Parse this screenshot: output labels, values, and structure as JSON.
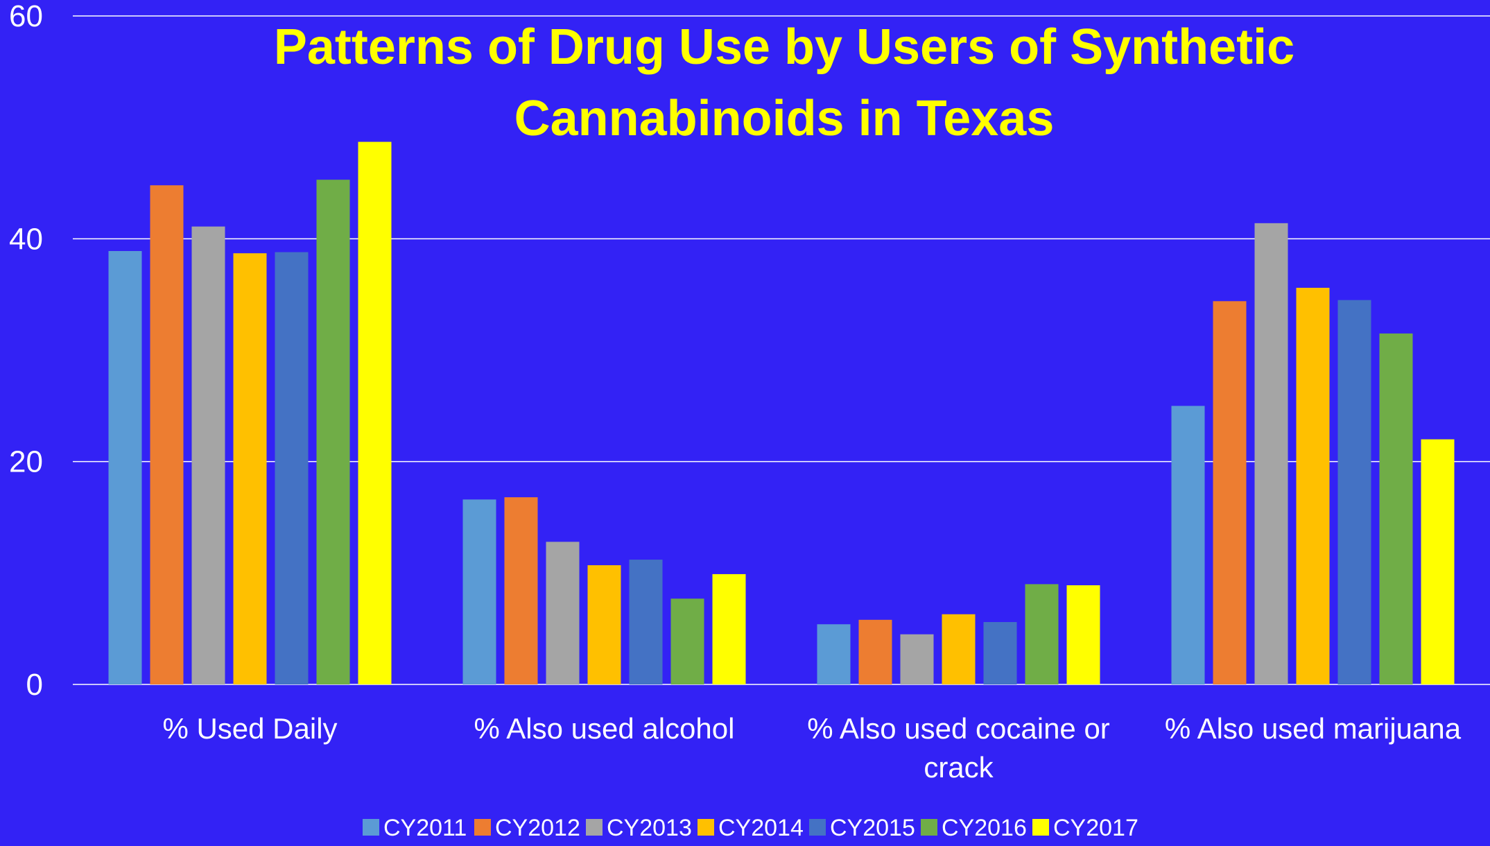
{
  "chart_data": {
    "type": "bar",
    "title": "Patterns of Drug Use by Users of Synthetic Cannabinoids in Texas",
    "title_lines": [
      "Patterns of Drug Use by Users of Synthetic",
      "Cannabinoids in Texas"
    ],
    "xlabel": "",
    "ylabel": "",
    "ylim": [
      0,
      60
    ],
    "yticks": [
      0,
      20,
      40,
      60
    ],
    "grid": true,
    "legend_position": "bottom",
    "categories": [
      "% Used Daily",
      "% Also used alcohol",
      "% Also used cocaine or crack",
      "% Also used marijuana"
    ],
    "category_lines": [
      [
        "% Used Daily"
      ],
      [
        "% Also used alcohol"
      ],
      [
        "% Also used cocaine or",
        "crack"
      ],
      [
        "% Also used marijuana"
      ]
    ],
    "series": [
      {
        "name": "CY2011",
        "color": "#5b9bd5",
        "values": [
          38.9,
          16.6,
          5.4,
          25.0
        ]
      },
      {
        "name": "CY2012",
        "color": "#ed7d31",
        "values": [
          44.8,
          16.8,
          5.8,
          34.4
        ]
      },
      {
        "name": "CY2013",
        "color": "#a5a5a5",
        "values": [
          41.1,
          12.8,
          4.5,
          41.4
        ]
      },
      {
        "name": "CY2014",
        "color": "#ffc000",
        "values": [
          38.7,
          10.7,
          6.3,
          35.6
        ]
      },
      {
        "name": "CY2015",
        "color": "#4472c4",
        "values": [
          38.8,
          11.2,
          5.6,
          34.5
        ]
      },
      {
        "name": "CY2016",
        "color": "#70ad47",
        "values": [
          45.3,
          7.7,
          9.0,
          31.5
        ]
      },
      {
        "name": "CY2017",
        "color": "#ffff00",
        "values": [
          48.7,
          9.9,
          8.9,
          22.0
        ]
      }
    ]
  }
}
